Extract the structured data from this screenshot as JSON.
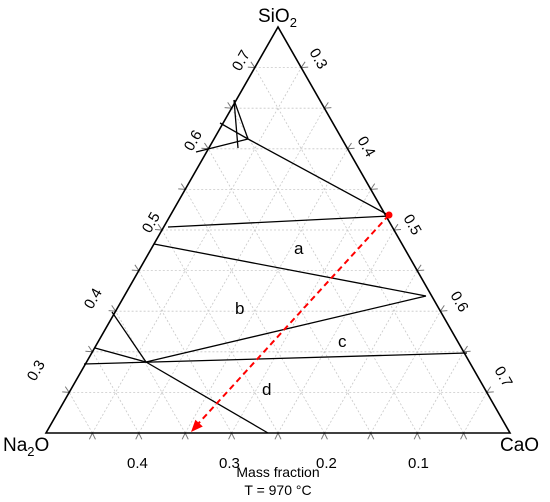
{
  "vertices": {
    "top": {
      "base": "SiO",
      "sub": "2"
    },
    "left": {
      "base": "Na",
      "sub": "2",
      "rest": "O"
    },
    "right": {
      "base": "CaO"
    }
  },
  "ticks": {
    "bottom": [
      "0.4",
      "0.3",
      "0.2",
      "0.1"
    ],
    "left": [
      "0.3",
      "0.4",
      "0.5",
      "0.6",
      "0.7"
    ],
    "right": [
      "0.3",
      "0.4",
      "0.5",
      "0.6",
      "0.7"
    ]
  },
  "regions": [
    "a",
    "b",
    "c",
    "d"
  ],
  "caption": {
    "line1": "Mass fraction",
    "line2": "T = 970 °C"
  },
  "colors": {
    "axis": "#000000",
    "grid": "#c8c8c8",
    "tie_line": "#ff0000"
  }
}
